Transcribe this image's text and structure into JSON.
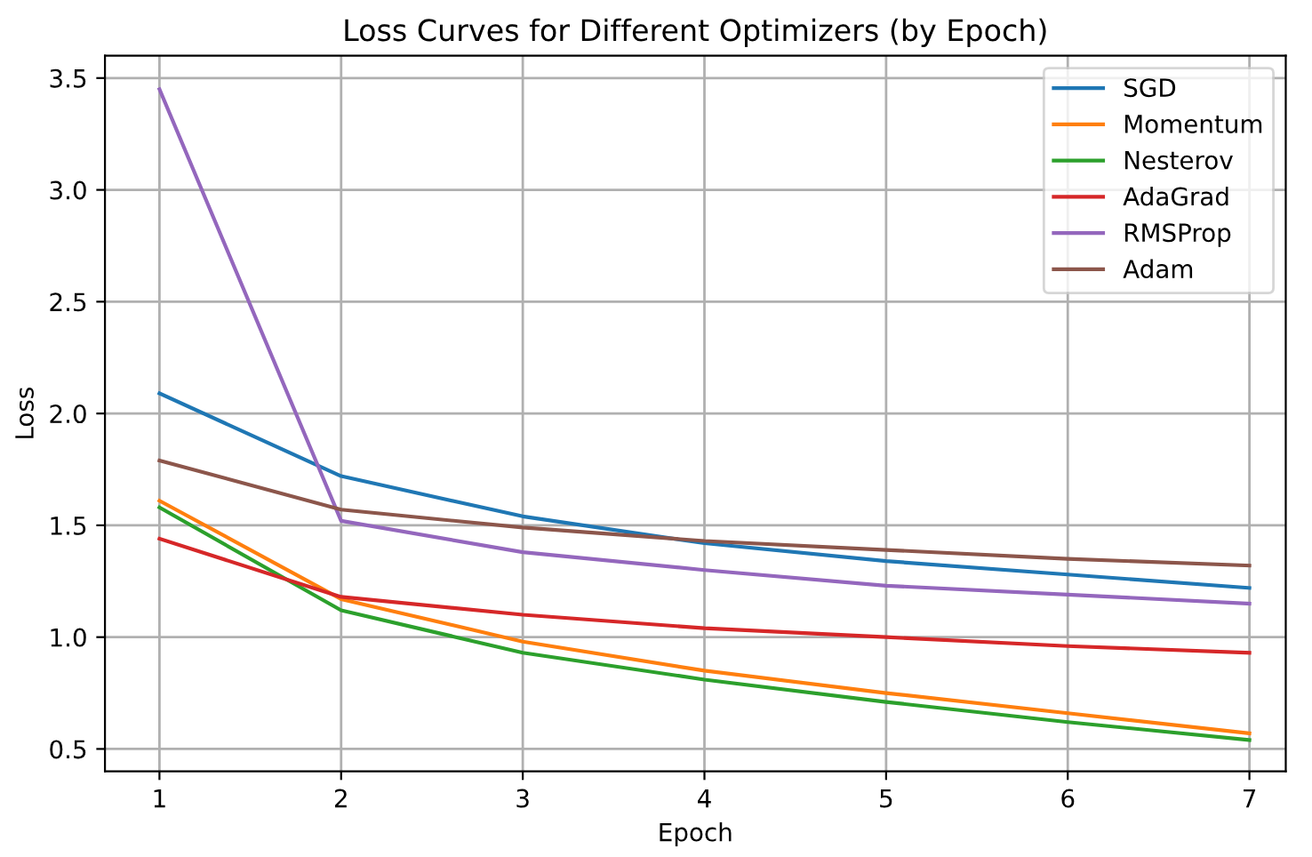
{
  "chart_data": {
    "type": "line",
    "title": "Loss Curves for Different Optimizers (by Epoch)",
    "xlabel": "Epoch",
    "ylabel": "Loss",
    "x": [
      1,
      2,
      3,
      4,
      5,
      6,
      7
    ],
    "series": [
      {
        "name": "SGD",
        "color": "#1f77b4",
        "values": [
          2.09,
          1.72,
          1.54,
          1.42,
          1.34,
          1.28,
          1.22
        ]
      },
      {
        "name": "Momentum",
        "color": "#ff7f0e",
        "values": [
          1.61,
          1.17,
          0.98,
          0.85,
          0.75,
          0.66,
          0.57
        ]
      },
      {
        "name": "Nesterov",
        "color": "#2ca02c",
        "values": [
          1.58,
          1.12,
          0.93,
          0.81,
          0.71,
          0.62,
          0.54
        ]
      },
      {
        "name": "AdaGrad",
        "color": "#d62728",
        "values": [
          1.44,
          1.18,
          1.1,
          1.04,
          1.0,
          0.96,
          0.93
        ]
      },
      {
        "name": "RMSProp",
        "color": "#9467bd",
        "values": [
          3.45,
          1.52,
          1.38,
          1.3,
          1.23,
          1.19,
          1.15
        ]
      },
      {
        "name": "Adam",
        "color": "#8c564b",
        "values": [
          1.79,
          1.57,
          1.49,
          1.43,
          1.39,
          1.35,
          1.32
        ]
      }
    ],
    "xlim": [
      0.7,
      7.2
    ],
    "ylim": [
      0.4,
      3.6
    ],
    "xticks": [
      1,
      2,
      3,
      4,
      5,
      6,
      7
    ],
    "yticks": [
      {
        "value": 0.5,
        "label": "0.5"
      },
      {
        "value": 1.0,
        "label": "1.0"
      },
      {
        "value": 1.5,
        "label": "1.5"
      },
      {
        "value": 2.0,
        "label": "2.0"
      },
      {
        "value": 2.5,
        "label": "2.5"
      },
      {
        "value": 3.0,
        "label": "3.0"
      },
      {
        "value": 3.5,
        "label": "3.5"
      }
    ],
    "grid": true,
    "legend": "top right",
    "marker": "none",
    "line_style": "solid"
  }
}
